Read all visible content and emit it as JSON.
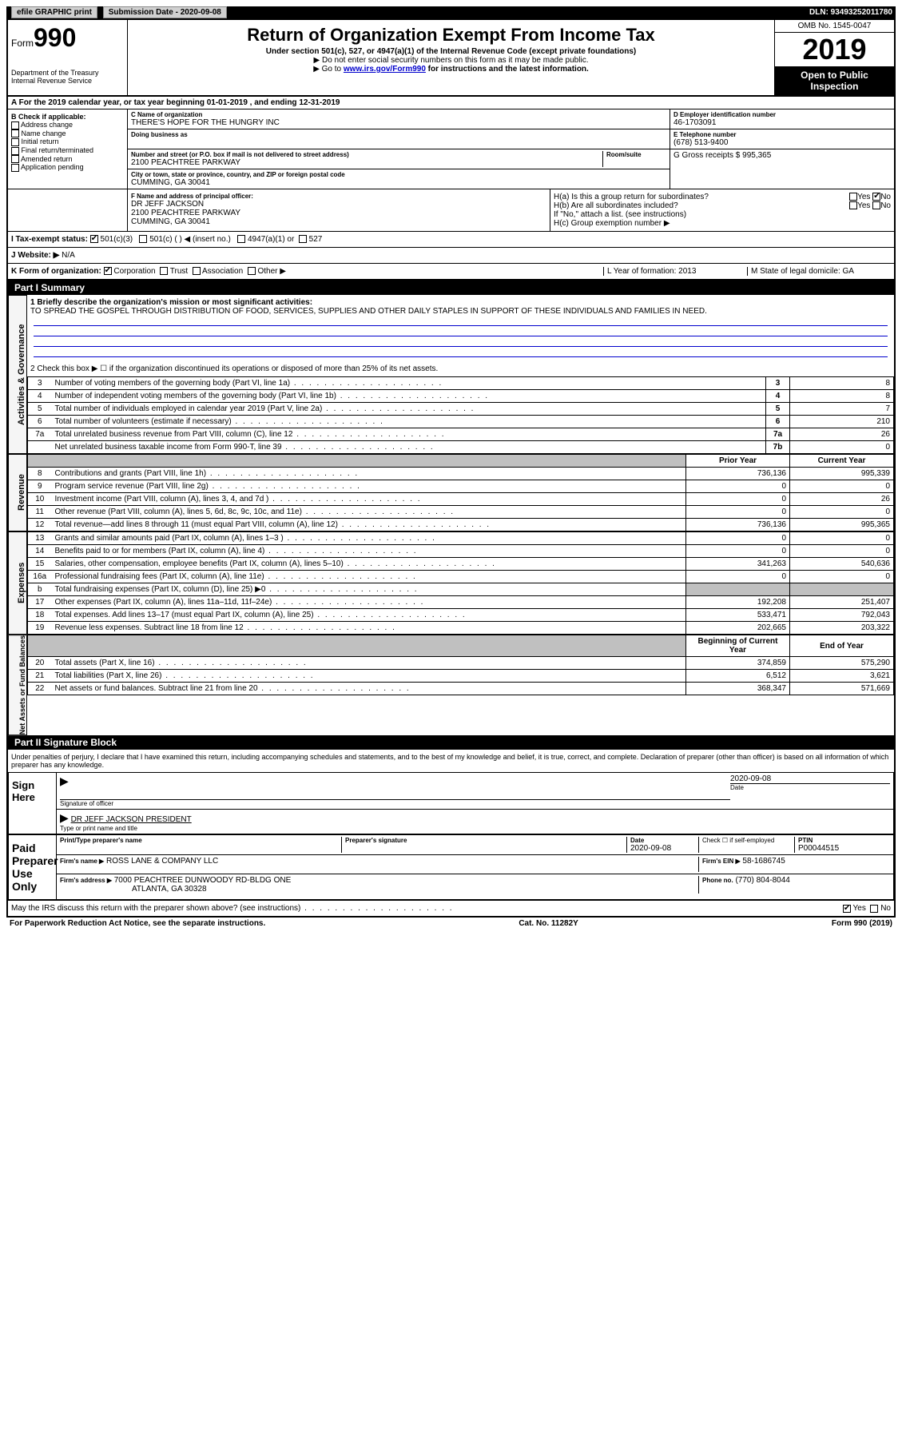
{
  "topbar": {
    "efile": "efile GRAPHIC print",
    "subdate_label": "Submission Date - 2020-09-08",
    "dln": "DLN: 93493252011780"
  },
  "header": {
    "form_label": "Form",
    "form_num": "990",
    "dept": "Department of the Treasury",
    "irs": "Internal Revenue Service",
    "title": "Return of Organization Exempt From Income Tax",
    "subtitle": "Under section 501(c), 527, or 4947(a)(1) of the Internal Revenue Code (except private foundations)",
    "note1": "▶ Do not enter social security numbers on this form as it may be made public.",
    "note2_pre": "▶ Go to ",
    "note2_link": "www.irs.gov/Form990",
    "note2_post": " for instructions and the latest information.",
    "omb": "OMB No. 1545-0047",
    "year": "2019",
    "open": "Open to Public Inspection"
  },
  "section_a": "A For the 2019 calendar year, or tax year beginning 01-01-2019   , and ending 12-31-2019",
  "col_b": {
    "label": "B Check if applicable:",
    "opts": [
      "Address change",
      "Name change",
      "Initial return",
      "Final return/terminated",
      "Amended return",
      "Application pending"
    ]
  },
  "col_c": {
    "name_label": "C Name of organization",
    "name": "THERE'S HOPE FOR THE HUNGRY INC",
    "dba_label": "Doing business as",
    "addr_label": "Number and street (or P.O. box if mail is not delivered to street address)",
    "room_label": "Room/suite",
    "addr": "2100 PEACHTREE PARKWAY",
    "city_label": "City or town, state or province, country, and ZIP or foreign postal code",
    "city": "CUMMING, GA  30041"
  },
  "col_de": {
    "d_label": "D Employer identification number",
    "d_val": "46-1703091",
    "e_label": "E Telephone number",
    "e_val": "(678) 513-9400",
    "g_label": "G Gross receipts $ 995,365"
  },
  "col_f": {
    "label": "F  Name and address of principal officer:",
    "name": "DR JEFF JACKSON",
    "addr": "2100 PEACHTREE PARKWAY",
    "city": "CUMMING, GA  30041"
  },
  "col_h": {
    "ha": "H(a)  Is this a group return for subordinates?",
    "hb": "H(b)  Are all subordinates included?",
    "hb_note": "If \"No,\" attach a list. (see instructions)",
    "hc": "H(c)  Group exemption number ▶"
  },
  "tax_exempt": {
    "label": "I  Tax-exempt status:",
    "opt1": "501(c)(3)",
    "opt2": "501(c) (  ) ◀ (insert no.)",
    "opt3": "4947(a)(1) or",
    "opt4": "527"
  },
  "website": {
    "label": "J  Website: ▶",
    "val": "N/A"
  },
  "k_row": {
    "label": "K Form of organization:",
    "opts": [
      "Corporation",
      "Trust",
      "Association",
      "Other ▶"
    ],
    "l_label": "L Year of formation: 2013",
    "m_label": "M State of legal domicile: GA"
  },
  "part1": {
    "title": "Part I     Summary",
    "q1_label": "1  Briefly describe the organization's mission or most significant activities:",
    "q1_text": "TO SPREAD THE GOSPEL THROUGH DISTRIBUTION OF FOOD, SERVICES, SUPPLIES AND OTHER DAILY STAPLES IN SUPPORT OF THESE INDIVIDUALS AND FAMILIES IN NEED.",
    "q2": "2  Check this box ▶ ☐  if the organization discontinued its operations or disposed of more than 25% of its net assets.",
    "sidebar1": "Activities & Governance",
    "sidebar2": "Revenue",
    "sidebar3": "Expenses",
    "sidebar4": "Net Assets or Fund Balances",
    "gov_rows": [
      {
        "n": "3",
        "d": "Number of voting members of the governing body (Part VI, line 1a)",
        "ln": "3",
        "v": "8"
      },
      {
        "n": "4",
        "d": "Number of independent voting members of the governing body (Part VI, line 1b)",
        "ln": "4",
        "v": "8"
      },
      {
        "n": "5",
        "d": "Total number of individuals employed in calendar year 2019 (Part V, line 2a)",
        "ln": "5",
        "v": "7"
      },
      {
        "n": "6",
        "d": "Total number of volunteers (estimate if necessary)",
        "ln": "6",
        "v": "210"
      },
      {
        "n": "7a",
        "d": "Total unrelated business revenue from Part VIII, column (C), line 12",
        "ln": "7a",
        "v": "26"
      },
      {
        "n": "",
        "d": "Net unrelated business taxable income from Form 990-T, line 39",
        "ln": "7b",
        "v": "0"
      }
    ],
    "col_headers": {
      "prior": "Prior Year",
      "current": "Current Year"
    },
    "rev_rows": [
      {
        "n": "8",
        "d": "Contributions and grants (Part VIII, line 1h)",
        "p": "736,136",
        "c": "995,339"
      },
      {
        "n": "9",
        "d": "Program service revenue (Part VIII, line 2g)",
        "p": "0",
        "c": "0"
      },
      {
        "n": "10",
        "d": "Investment income (Part VIII, column (A), lines 3, 4, and 7d )",
        "p": "0",
        "c": "26"
      },
      {
        "n": "11",
        "d": "Other revenue (Part VIII, column (A), lines 5, 6d, 8c, 9c, 10c, and 11e)",
        "p": "0",
        "c": "0"
      },
      {
        "n": "12",
        "d": "Total revenue—add lines 8 through 11 (must equal Part VIII, column (A), line 12)",
        "p": "736,136",
        "c": "995,365"
      }
    ],
    "exp_rows": [
      {
        "n": "13",
        "d": "Grants and similar amounts paid (Part IX, column (A), lines 1–3 )",
        "p": "0",
        "c": "0"
      },
      {
        "n": "14",
        "d": "Benefits paid to or for members (Part IX, column (A), line 4)",
        "p": "0",
        "c": "0"
      },
      {
        "n": "15",
        "d": "Salaries, other compensation, employee benefits (Part IX, column (A), lines 5–10)",
        "p": "341,263",
        "c": "540,636"
      },
      {
        "n": "16a",
        "d": "Professional fundraising fees (Part IX, column (A), line 11e)",
        "p": "0",
        "c": "0"
      },
      {
        "n": "b",
        "d": "Total fundraising expenses (Part IX, column (D), line 25) ▶0",
        "p": "",
        "c": "",
        "shaded": true
      },
      {
        "n": "17",
        "d": "Other expenses (Part IX, column (A), lines 11a–11d, 11f–24e)",
        "p": "192,208",
        "c": "251,407"
      },
      {
        "n": "18",
        "d": "Total expenses. Add lines 13–17 (must equal Part IX, column (A), line 25)",
        "p": "533,471",
        "c": "792,043"
      },
      {
        "n": "19",
        "d": "Revenue less expenses. Subtract line 18 from line 12",
        "p": "202,665",
        "c": "203,322"
      }
    ],
    "net_headers": {
      "begin": "Beginning of Current Year",
      "end": "End of Year"
    },
    "net_rows": [
      {
        "n": "20",
        "d": "Total assets (Part X, line 16)",
        "p": "374,859",
        "c": "575,290"
      },
      {
        "n": "21",
        "d": "Total liabilities (Part X, line 26)",
        "p": "6,512",
        "c": "3,621"
      },
      {
        "n": "22",
        "d": "Net assets or fund balances. Subtract line 21 from line 20",
        "p": "368,347",
        "c": "571,669"
      }
    ]
  },
  "part2": {
    "title": "Part II     Signature Block",
    "decl": "Under penalties of perjury, I declare that I have examined this return, including accompanying schedules and statements, and to the best of my knowledge and belief, it is true, correct, and complete. Declaration of preparer (other than officer) is based on all information of which preparer has any knowledge.",
    "sign_here": "Sign Here",
    "sig_officer": "Signature of officer",
    "sig_date": "2020-09-08",
    "date_label": "Date",
    "officer_name": "DR JEFF JACKSON  PRESIDENT",
    "type_label": "Type or print name and title",
    "paid": "Paid Preparer Use Only",
    "prep_name_label": "Print/Type preparer's name",
    "prep_sig_label": "Preparer's signature",
    "prep_date": "2020-09-08",
    "check_self": "Check ☐ if self-employed",
    "ptin_label": "PTIN",
    "ptin": "P00044515",
    "firm_name_label": "Firm's name    ▶",
    "firm_name": "ROSS LANE & COMPANY LLC",
    "firm_ein_label": "Firm's EIN ▶",
    "firm_ein": "58-1686745",
    "firm_addr_label": "Firm's address ▶",
    "firm_addr1": "7000 PEACHTREE DUNWOODY RD-BLDG ONE",
    "firm_addr2": "ATLANTA, GA  30328",
    "phone_label": "Phone no.",
    "phone": "(770) 804-8044",
    "discuss": "May the IRS discuss this return with the preparer shown above? (see instructions)",
    "yes": "Yes",
    "no": "No"
  },
  "footer": {
    "left": "For Paperwork Reduction Act Notice, see the separate instructions.",
    "center": "Cat. No. 11282Y",
    "right": "Form 990 (2019)"
  }
}
